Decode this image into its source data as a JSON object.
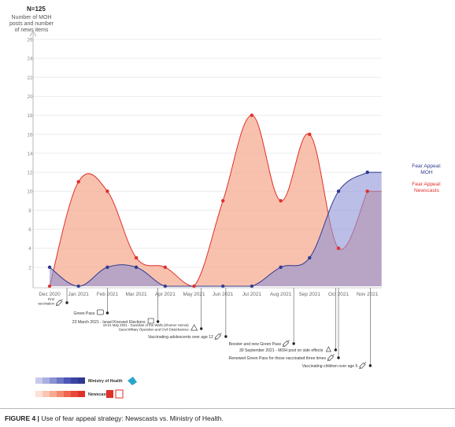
{
  "figure": {
    "caption_label": "FIGURE 4 |",
    "caption_text": "Use of fear appeal strategy: Newscasts vs. Ministry of Health."
  },
  "chart_data": {
    "type": "area",
    "title": "N=125",
    "ylabel_lines": [
      "Number of MOH",
      "posts and number",
      "of news items"
    ],
    "ylim": [
      0,
      26
    ],
    "yticks": [
      2,
      4,
      6,
      8,
      10,
      12,
      14,
      16,
      18,
      20,
      22,
      24,
      26
    ],
    "categories": [
      "Dec 2020",
      "Jan 2021",
      "Feb 2021",
      "Mar 2021",
      "Apr 2021",
      "May 2021",
      "Jun 2021",
      "Jul 2021",
      "Aug 2021",
      "Sep 2021",
      "Oct 2021",
      "Nov 2021"
    ],
    "grid": true,
    "series": [
      {
        "name": "Fear Appeal: MOH",
        "label_lines": [
          "Fear Appeal:",
          "MOH"
        ],
        "color": "#2f3a8f",
        "fill": "#8e93d6",
        "values": [
          2,
          0,
          2,
          2,
          0,
          0,
          0,
          0,
          2,
          3,
          10,
          12
        ]
      },
      {
        "name": "Fear Appeal: Newscasts",
        "label_lines": [
          "Fear Appeal:",
          "Newscasts"
        ],
        "color": "#e0302a",
        "fill": "#f5a78c",
        "values": [
          0,
          11,
          10,
          3,
          2,
          0,
          9,
          18,
          9,
          16,
          4,
          10
        ]
      }
    ],
    "events": [
      {
        "text": "First vaccination",
        "lines": [
          "First",
          "vaccination"
        ],
        "month": 0.6,
        "icon": "syringe-icon"
      },
      {
        "text": "Green Pass",
        "lines": [
          "Green Pass"
        ],
        "month": 2.0,
        "icon": "pass-icon"
      },
      {
        "text": "23 March 2021 - Israel Knesset Elections",
        "lines": [
          "23 March 2021 - Israel Knesset Elections"
        ],
        "month": 3.75,
        "icon": "ballot-icon"
      },
      {
        "text": "10-21 May 2021 - Guardian of the Walls (Shomer Homot) Gaza Military Operation and Civil Disturbances",
        "lines": [
          "10-21 May 2021 - Guardian of the Walls (Shomer Homot)",
          "Gaza Military Operation and Civil Disturbances"
        ],
        "month": 5.25,
        "icon": "operation-icon"
      },
      {
        "text": "Vaccinating adolescents over age 12",
        "lines": [
          "Vaccinating adolescents over age 12"
        ],
        "month": 6.1,
        "icon": "syringe-icon"
      },
      {
        "text": "Booster and new Green Pass",
        "lines": [
          "Booster and new Green Pass"
        ],
        "month": 8.45,
        "icon": "syringe-icon"
      },
      {
        "text": "30 September 2021 - MOH post on side effects",
        "lines": [
          "30 September 2021 - MOH post on side effects"
        ],
        "month": 9.9,
        "icon": "warning-icon"
      },
      {
        "text": "Renewed Green Pass for those vaccinated three times",
        "lines": [
          "Renewed Green Pass for those vaccinated three times"
        ],
        "month": 10.0,
        "icon": "syringe-icon"
      },
      {
        "text": "Vaccinating children over age 5",
        "lines": [
          "Vaccinating children over age 5"
        ],
        "month": 11.1,
        "icon": "syringe-icon"
      }
    ],
    "legend": [
      {
        "label": "Ministry of Health",
        "color": "#2f3a8f",
        "icon": "moh-logo-icon"
      },
      {
        "label": "Newscasts",
        "color": "#e0302a",
        "icon": "news-channels-icon"
      }
    ]
  }
}
